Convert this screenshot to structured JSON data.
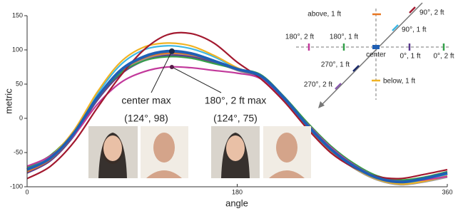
{
  "chart_data": {
    "type": "line",
    "xlabel": "angle",
    "ylabel": "metric",
    "x": [
      0,
      20,
      40,
      60,
      80,
      100,
      120,
      140,
      160,
      180,
      200,
      220,
      240,
      260,
      280,
      300,
      320,
      340,
      360
    ],
    "xlim": [
      0,
      360
    ],
    "xticks": [
      0,
      180,
      360
    ],
    "ylim": [
      -100,
      150
    ],
    "yticks": [
      -100,
      -50,
      0,
      50,
      100,
      150
    ],
    "series": [
      {
        "color": "#999999",
        "values": [
          -77,
          -60,
          -24,
          27,
          66,
          86,
          93,
          91,
          82,
          70,
          58,
          27,
          -12,
          -48,
          -73,
          -90,
          -97,
          -93,
          -86
        ]
      },
      {
        "color": "#5b3a8e",
        "values": [
          -80,
          -62,
          -26,
          26,
          64,
          84,
          92,
          90,
          82,
          71,
          60,
          29,
          -10,
          -45,
          -70,
          -88,
          -94,
          -89,
          -81
        ]
      },
      {
        "color": "#e87722",
        "values": [
          -78,
          -60,
          -24,
          28,
          68,
          88,
          95,
          93,
          83,
          71,
          61,
          30,
          -9,
          -44,
          -69,
          -86,
          -92,
          -87,
          -79
        ]
      },
      {
        "color": "#35a04a",
        "values": [
          -72,
          -54,
          -20,
          30,
          66,
          84,
          90,
          88,
          80,
          72,
          64,
          32,
          -6,
          -40,
          -66,
          -84,
          -90,
          -86,
          -78
        ]
      },
      {
        "color": "#3db7e4",
        "values": [
          -74,
          -57,
          -20,
          35,
          78,
          100,
          106,
          102,
          90,
          73,
          61,
          29,
          -11,
          -46,
          -71,
          -88,
          -95,
          -90,
          -82
        ]
      },
      {
        "color": "#f0b323",
        "values": [
          -76,
          -56,
          -18,
          38,
          82,
          104,
          110,
          106,
          92,
          74,
          60,
          28,
          -12,
          -47,
          -72,
          -89,
          -96,
          -92,
          -84
        ]
      },
      {
        "color": "#c2399b",
        "values": [
          -70,
          -55,
          -25,
          20,
          52,
          68,
          75,
          74,
          70,
          66,
          58,
          28,
          -8,
          -42,
          -68,
          -86,
          -92,
          -90,
          -85
        ]
      },
      {
        "color": "#a3192f",
        "values": [
          -88,
          -70,
          -35,
          15,
          62,
          100,
          122,
          124,
          110,
          82,
          58,
          25,
          -15,
          -50,
          -72,
          -85,
          -88,
          -82,
          -75
        ]
      },
      {
        "color": "#1f5fb4",
        "values": [
          -75,
          -58,
          -22,
          30,
          70,
          90,
          98,
          95,
          84,
          72,
          62,
          30,
          -10,
          -45,
          -70,
          -87,
          -93,
          -88,
          -80
        ]
      }
    ],
    "points": [
      {
        "x": 124,
        "y": 98,
        "label": "center max",
        "coords": "(124°, 98)"
      },
      {
        "x": 124,
        "y": 75,
        "label": "180°, 2 ft max",
        "coords": "(124°, 75)"
      }
    ],
    "inset_labels": [
      "above, 1 ft",
      "90°, 2 ft",
      "90°, 1 ft",
      "180°, 2 ft",
      "180°, 1 ft",
      "center",
      "0°, 1 ft",
      "0°, 2 ft",
      "270°, 1 ft",
      "270°, 2 ft",
      "below, 1 ft"
    ]
  }
}
